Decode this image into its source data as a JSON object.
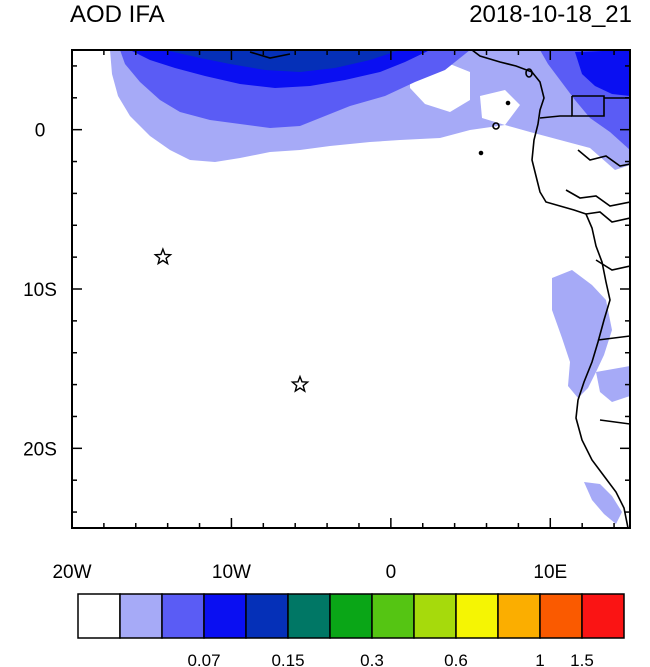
{
  "title_left": "AOD IFA",
  "title_right": "2018-10-18_21",
  "map": {
    "lon_labels": [
      "20W",
      "10W",
      "0",
      "10E"
    ],
    "lat_labels": [
      "0",
      "10S",
      "20S"
    ],
    "markers": [
      {
        "lon": -14.3,
        "lat": -8.0,
        "symbol": "star"
      },
      {
        "lon": -5.7,
        "lat": -16.0,
        "symbol": "star"
      }
    ]
  },
  "colorbar": {
    "colors": [
      "#ffffff",
      "#a6aaf7",
      "#5a5cf5",
      "#0a0ff2",
      "#0530b8",
      "#007765",
      "#0aa617",
      "#55c513",
      "#a6da0c",
      "#f5f503",
      "#fbae00",
      "#fa5a00",
      "#fa1414"
    ],
    "labels": [
      {
        "text": "0.07",
        "boundary": 3
      },
      {
        "text": "0.15",
        "boundary": 5
      },
      {
        "text": "0.3",
        "boundary": 7
      },
      {
        "text": "0.6",
        "boundary": 9
      },
      {
        "text": "1",
        "boundary": 11
      },
      {
        "text": "1.5",
        "boundary": 12
      }
    ]
  }
}
